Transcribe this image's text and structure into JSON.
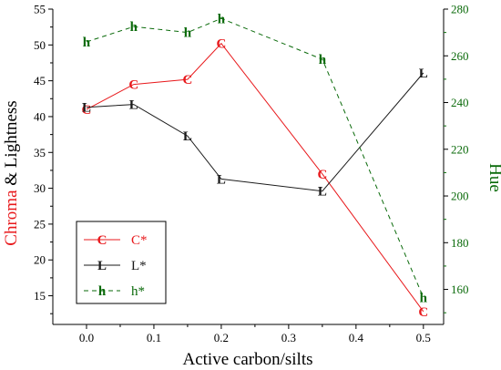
{
  "chart_data": {
    "type": "line",
    "xlabel": "Active carbon/silts",
    "ylabel_left": {
      "part1": "Chroma",
      "part2": " & Lightness"
    },
    "ylabel_right": "Hue",
    "xlim": [
      -0.05,
      0.53
    ],
    "ylim_left": [
      11,
      55
    ],
    "ylim_right": [
      145,
      280
    ],
    "xticks": [
      0.0,
      0.1,
      0.2,
      0.3,
      0.4,
      0.5
    ],
    "xtick_labels": [
      "0.0",
      "0.1",
      "0.2",
      "0.3",
      "0.4",
      "0.5"
    ],
    "yticks_left": [
      15,
      20,
      25,
      30,
      35,
      40,
      45,
      50,
      55
    ],
    "yticks_right": [
      160,
      180,
      200,
      220,
      240,
      260,
      280
    ],
    "x": [
      0.0,
      0.07,
      0.15,
      0.2,
      0.35,
      0.5
    ],
    "series": [
      {
        "name": "C*",
        "marker": "C",
        "axis": "left",
        "color": "#e8191c",
        "dash": "solid",
        "values": [
          41.0,
          44.5,
          45.2,
          50.2,
          32.0,
          12.8
        ]
      },
      {
        "name": "L*",
        "marker": "L",
        "axis": "left",
        "color": "#1a1a1a",
        "dash": "solid",
        "values": [
          41.3,
          41.7,
          37.3,
          31.3,
          29.6,
          46.1
        ]
      },
      {
        "name": "h*",
        "marker": "h",
        "axis": "right",
        "color": "#0a6a0a",
        "dash": "dashed",
        "values": [
          266.0,
          272.5,
          270.0,
          276.0,
          258.5,
          156.5
        ]
      }
    ],
    "legend": {
      "position": "bottom-left",
      "items": [
        {
          "marker": "C",
          "label": "C*",
          "color": "#e8191c",
          "dash": "solid"
        },
        {
          "marker": "L",
          "label": "L*",
          "color": "#1a1a1a",
          "dash": "solid"
        },
        {
          "marker": "h",
          "label": "h*",
          "color": "#0a6a0a",
          "dash": "dashed"
        }
      ]
    },
    "colors": {
      "left_axis_title": "#e8191c",
      "right_axis": "#0a6a0a"
    },
    "grid": false
  }
}
